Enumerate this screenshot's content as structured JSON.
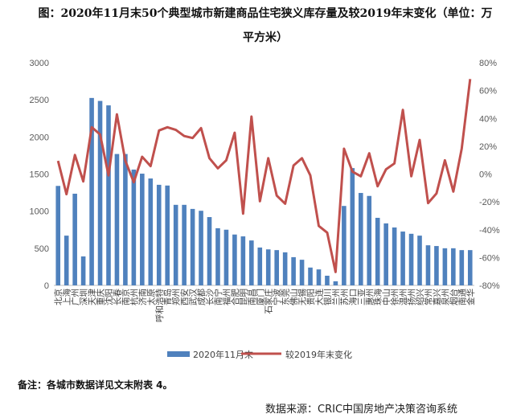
{
  "chart_data": {
    "type": "bar+line",
    "title_line1": "图：2020年11月末50个典型城市新建商品住宅狭义库存量及较2019年末变化（单位：万",
    "title_line2": "平方米）",
    "categories": [
      "北京",
      "上海",
      "广州",
      "深圳",
      "天津",
      "重庆",
      "沈阳",
      "长春",
      "南京",
      "杭州",
      "济南",
      "太原",
      "呼和浩特",
      "青岛",
      "郑州",
      "西安",
      "武汉",
      "成都",
      "长沙",
      "南宁",
      "福州",
      "合肥",
      "昆明",
      "南昌",
      "厦门",
      "石家庄",
      "宁波",
      "东莞",
      "佛山",
      "无锡",
      "贵阳",
      "大连",
      "银川",
      "兰州",
      "苏州",
      "海口",
      "三亚",
      "惠州",
      "珠海",
      "中山",
      "徐州",
      "温州",
      "扬州",
      "绍兴",
      "常州",
      "嘉兴",
      "泉州",
      "烟台",
      "南通",
      "金华"
    ],
    "series": [
      {
        "name": "2020年11月末",
        "type": "bar",
        "axis": "left",
        "color": "#4F81BD",
        "values": [
          1340,
          670,
          1235,
          390,
          2525,
          2485,
          2425,
          1770,
          1770,
          1560,
          1505,
          1440,
          1355,
          1345,
          1085,
          1085,
          1030,
          1005,
          920,
          770,
          750,
          685,
          660,
          605,
          510,
          485,
          475,
          445,
          380,
          345,
          240,
          215,
          130,
          55,
          1070,
          1580,
          1245,
          1205,
          910,
          835,
          780,
          725,
          695,
          670,
          540,
          530,
          500,
          500,
          475,
          475
        ]
      },
      {
        "name": "较2019年末变化",
        "type": "line",
        "axis": "right",
        "color": "#C0504D",
        "values": [
          9.5,
          -14.5,
          13.7,
          -5.3,
          33.6,
          28.4,
          -1.0,
          42.9,
          9.5,
          -5.9,
          12.4,
          5.7,
          31.3,
          33.6,
          31.7,
          27.3,
          25.9,
          33.0,
          11.4,
          4.1,
          9.9,
          29.7,
          -28.4,
          41.3,
          -19.5,
          11.4,
          -15.5,
          -21.3,
          6.1,
          11.4,
          -1.0,
          -37.3,
          -42.1,
          -70.4,
          18.2,
          1.8,
          -1.6,
          14.9,
          -8.8,
          3.4,
          7.6,
          46.1,
          -1.6,
          24.5,
          -20.9,
          -14.0,
          9.9,
          -12.6,
          18.2,
          68.3
        ]
      }
    ],
    "y_left": {
      "range": [
        0,
        3000
      ],
      "ticks": [
        "0",
        "500",
        "1000",
        "1500",
        "2000",
        "2500",
        "3000"
      ]
    },
    "y_right": {
      "range": [
        -80,
        80
      ],
      "ticks": [
        "-80%",
        "-60%",
        "-40%",
        "-20%",
        "0%",
        "20%",
        "40%",
        "60%",
        "80%"
      ]
    },
    "grid": false,
    "legend_position": "bottom"
  },
  "note": "备注：各城市数据详见文末附表 4。",
  "source": "数据来源：CRIC中国房地产决策咨询系统"
}
